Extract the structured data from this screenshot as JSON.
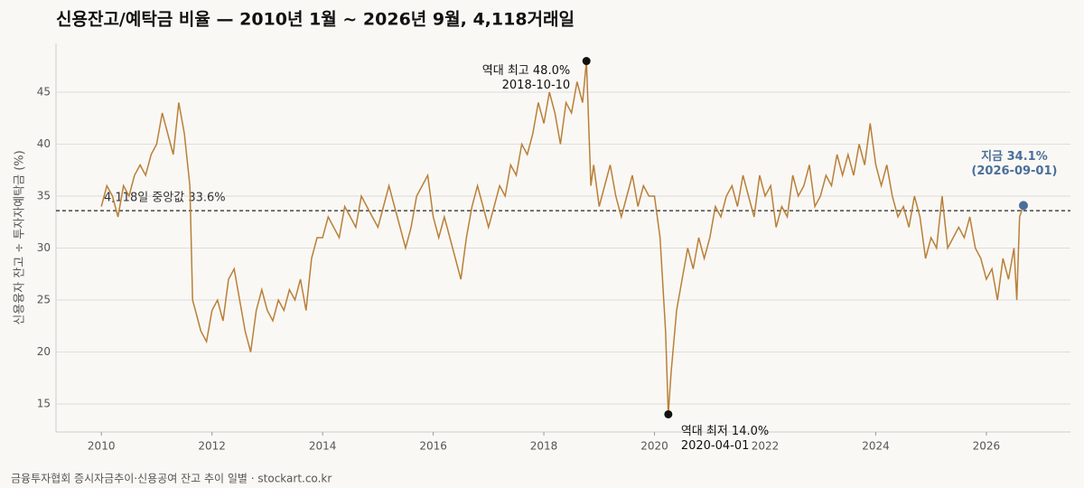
{
  "chart_data": {
    "type": "line",
    "title": "신용잔고/예탁금 비율 — 2010년 1월 ~ 2026년 9월, 4,118거래일",
    "ylabel": "신용융자 잔고 ÷ 투자자예탁금 (%)",
    "source": "금융투자협회 증시자금추이·신용공여 잔고 추이 일별 · stockart.co.kr",
    "xlim": [
      2009.18,
      2027.52
    ],
    "ylim": [
      12.3,
      49.7
    ],
    "xticks": [
      2010,
      2012,
      2014,
      2016,
      2018,
      2020,
      2022,
      2024,
      2026
    ],
    "yticks": [
      15,
      20,
      25,
      30,
      35,
      40,
      45
    ],
    "grid": true,
    "series": [
      {
        "color": "#b8803a",
        "x": [
          2010.0,
          2010.1,
          2010.2,
          2010.3,
          2010.4,
          2010.5,
          2010.6,
          2010.7,
          2010.8,
          2010.9,
          2011.0,
          2011.1,
          2011.2,
          2011.3,
          2011.4,
          2011.5,
          2011.6,
          2011.65,
          2011.7,
          2011.8,
          2011.9,
          2012.0,
          2012.1,
          2012.2,
          2012.3,
          2012.4,
          2012.5,
          2012.6,
          2012.7,
          2012.8,
          2012.9,
          2013.0,
          2013.1,
          2013.2,
          2013.3,
          2013.4,
          2013.5,
          2013.6,
          2013.7,
          2013.8,
          2013.9,
          2014.0,
          2014.1,
          2014.2,
          2014.3,
          2014.4,
          2014.5,
          2014.6,
          2014.7,
          2014.8,
          2014.9,
          2015.0,
          2015.1,
          2015.2,
          2015.3,
          2015.4,
          2015.5,
          2015.6,
          2015.7,
          2015.8,
          2015.9,
          2016.0,
          2016.1,
          2016.2,
          2016.3,
          2016.4,
          2016.5,
          2016.6,
          2016.7,
          2016.8,
          2016.9,
          2017.0,
          2017.1,
          2017.2,
          2017.3,
          2017.4,
          2017.5,
          2017.6,
          2017.7,
          2017.8,
          2017.9,
          2018.0,
          2018.1,
          2018.2,
          2018.3,
          2018.4,
          2018.5,
          2018.6,
          2018.7,
          2018.77,
          2018.85,
          2018.9,
          2019.0,
          2019.1,
          2019.2,
          2019.3,
          2019.4,
          2019.5,
          2019.6,
          2019.7,
          2019.8,
          2019.9,
          2020.0,
          2020.1,
          2020.2,
          2020.25,
          2020.3,
          2020.4,
          2020.5,
          2020.6,
          2020.7,
          2020.8,
          2020.9,
          2021.0,
          2021.1,
          2021.2,
          2021.3,
          2021.4,
          2021.5,
          2021.6,
          2021.7,
          2021.8,
          2021.9,
          2022.0,
          2022.1,
          2022.2,
          2022.3,
          2022.4,
          2022.5,
          2022.6,
          2022.7,
          2022.8,
          2022.9,
          2023.0,
          2023.1,
          2023.2,
          2023.3,
          2023.4,
          2023.5,
          2023.6,
          2023.7,
          2023.8,
          2023.9,
          2024.0,
          2024.1,
          2024.2,
          2024.3,
          2024.4,
          2024.5,
          2024.6,
          2024.7,
          2024.8,
          2024.9,
          2025.0,
          2025.1,
          2025.2,
          2025.3,
          2025.4,
          2025.5,
          2025.6,
          2025.7,
          2025.8,
          2025.9,
          2026.0,
          2026.1,
          2026.2,
          2026.3,
          2026.4,
          2026.5,
          2026.55,
          2026.6,
          2026.67
        ],
        "values": [
          34,
          36,
          35,
          33,
          36,
          35,
          37,
          38,
          37,
          39,
          40,
          43,
          41,
          39,
          44,
          41,
          36,
          25,
          24,
          22,
          21,
          24,
          25,
          23,
          27,
          28,
          25,
          22,
          20,
          24,
          26,
          24,
          23,
          25,
          24,
          26,
          25,
          27,
          24,
          29,
          31,
          31,
          33,
          32,
          31,
          34,
          33,
          32,
          35,
          34,
          33,
          32,
          34,
          36,
          34,
          32,
          30,
          32,
          35,
          36,
          37,
          33,
          31,
          33,
          31,
          29,
          27,
          31,
          34,
          36,
          34,
          32,
          34,
          36,
          35,
          38,
          37,
          40,
          39,
          41,
          44,
          42,
          45,
          43,
          40,
          44,
          43,
          46,
          44,
          48,
          36,
          38,
          34,
          36,
          38,
          35,
          33,
          35,
          37,
          34,
          36,
          35,
          35,
          31,
          22,
          14,
          18,
          24,
          27,
          30,
          28,
          31,
          29,
          31,
          34,
          33,
          35,
          36,
          34,
          37,
          35,
          33,
          37,
          35,
          36,
          32,
          34,
          33,
          37,
          35,
          36,
          38,
          34,
          35,
          37,
          36,
          39,
          37,
          39,
          37,
          40,
          38,
          42,
          38,
          36,
          38,
          35,
          33,
          34,
          32,
          35,
          33,
          29,
          31,
          30,
          35,
          30,
          31,
          32,
          31,
          33,
          30,
          29,
          27,
          28,
          25,
          29,
          27,
          30,
          25,
          33,
          34.1
        ]
      }
    ],
    "median_line": {
      "value": 33.6,
      "label": "4,118일 중앙값 33.6%"
    },
    "annotations": [
      {
        "x": 2018.77,
        "y": 48,
        "lines": [
          "역대 최고 48.0%",
          "2018-10-10"
        ],
        "color": "#111111"
      },
      {
        "x": 2020.25,
        "y": 14,
        "lines": [
          "역대 최저 14.0%",
          "2020-04-01"
        ],
        "color": "#111111"
      },
      {
        "x": 2026.67,
        "y": 34.1,
        "lines": [
          "지금 34.1%",
          "(2026-09-01)"
        ],
        "color": "#4a6f9a"
      }
    ]
  }
}
